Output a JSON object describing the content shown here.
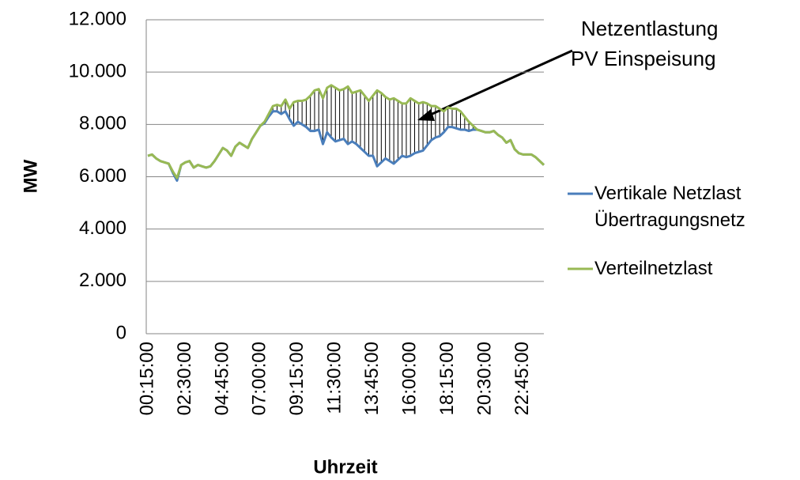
{
  "chart_data": {
    "type": "line",
    "annotation": [
      "Netzentlastung",
      "PV Einspeisung"
    ],
    "y_label": "MW",
    "x_label": "Uhrzeit",
    "categories": [
      "00:15:00",
      null,
      null,
      null,
      null,
      null,
      null,
      null,
      null,
      "02:30:00",
      null,
      null,
      null,
      null,
      null,
      null,
      null,
      null,
      "04:45:00",
      null,
      null,
      null,
      null,
      null,
      null,
      null,
      null,
      "07:00:00",
      null,
      null,
      null,
      null,
      null,
      null,
      null,
      null,
      "09:15:00",
      null,
      null,
      null,
      null,
      null,
      null,
      null,
      null,
      "11:30:00",
      null,
      null,
      null,
      null,
      null,
      null,
      null,
      null,
      "13:45:00",
      null,
      null,
      null,
      null,
      null,
      null,
      null,
      null,
      "16:00:00",
      null,
      null,
      null,
      null,
      null,
      null,
      null,
      null,
      "18:15:00",
      null,
      null,
      null,
      null,
      null,
      null,
      null,
      null,
      "20:30:00",
      null,
      null,
      null,
      null,
      null,
      null,
      null,
      null,
      "22:45:00",
      null,
      null,
      null,
      null,
      null
    ],
    "series": [
      {
        "name": "Vertikale Netzlast Übertragungsnetz",
        "color": "#4a7ebb",
        "values": [
          6800,
          6850,
          6700,
          6600,
          6550,
          6500,
          6150,
          5850,
          6450,
          6550,
          6600,
          6350,
          6450,
          6400,
          6350,
          6400,
          6600,
          6850,
          7100,
          7000,
          6800,
          7150,
          7300,
          7200,
          7100,
          7450,
          7700,
          7950,
          8050,
          8300,
          8500,
          8500,
          8400,
          8500,
          8200,
          7950,
          8100,
          8000,
          7900,
          7750,
          7750,
          7800,
          7250,
          7700,
          7500,
          7350,
          7400,
          7450,
          7250,
          7350,
          7250,
          7100,
          6950,
          6800,
          6800,
          6400,
          6550,
          6700,
          6600,
          6500,
          6650,
          6800,
          6750,
          6800,
          6900,
          6950,
          7000,
          7200,
          7400,
          7500,
          7550,
          7700,
          7900,
          7900,
          7850,
          7800,
          7800,
          7750,
          7800,
          7800,
          7750,
          7700,
          7700,
          7750,
          7600,
          7500,
          7300,
          7400,
          7050,
          6900,
          6850,
          6850,
          6850,
          6750,
          6600,
          6450
        ]
      },
      {
        "name": "Verteilnetzlast",
        "color": "#98b954",
        "values": [
          6800,
          6850,
          6700,
          6600,
          6550,
          6500,
          6200,
          5950,
          6450,
          6550,
          6600,
          6350,
          6450,
          6400,
          6350,
          6400,
          6600,
          6850,
          7100,
          7000,
          6800,
          7150,
          7300,
          7200,
          7100,
          7450,
          7700,
          7950,
          8100,
          8400,
          8700,
          8750,
          8700,
          8950,
          8600,
          8850,
          8900,
          8900,
          8950,
          9100,
          9300,
          9350,
          9000,
          9400,
          9500,
          9400,
          9300,
          9350,
          9450,
          9200,
          9250,
          9300,
          9100,
          8900,
          9100,
          9300,
          9200,
          9050,
          8950,
          9000,
          8900,
          8800,
          8800,
          9000,
          8900,
          8800,
          8850,
          8800,
          8700,
          8700,
          8600,
          8500,
          8650,
          8600,
          8600,
          8500,
          8300,
          8100,
          7950,
          7800,
          7750,
          7700,
          7700,
          7750,
          7600,
          7500,
          7300,
          7400,
          7050,
          6900,
          6850,
          6850,
          6850,
          6750,
          6600,
          6450
        ]
      }
    ],
    "ylim": [
      0,
      12000
    ],
    "yticks": [
      0,
      {
        "value": 2000,
        "label": "2.000"
      },
      {
        "value": 4000,
        "label": "4.000"
      },
      {
        "value": 6000,
        "label": "6.000"
      },
      {
        "value": 8000,
        "label": "8.000"
      },
      {
        "value": 10000,
        "label": "10.000"
      },
      {
        "value": 12000,
        "label": "12.000"
      }
    ],
    "grid": true,
    "legend": "right",
    "high_low_lines": true
  }
}
